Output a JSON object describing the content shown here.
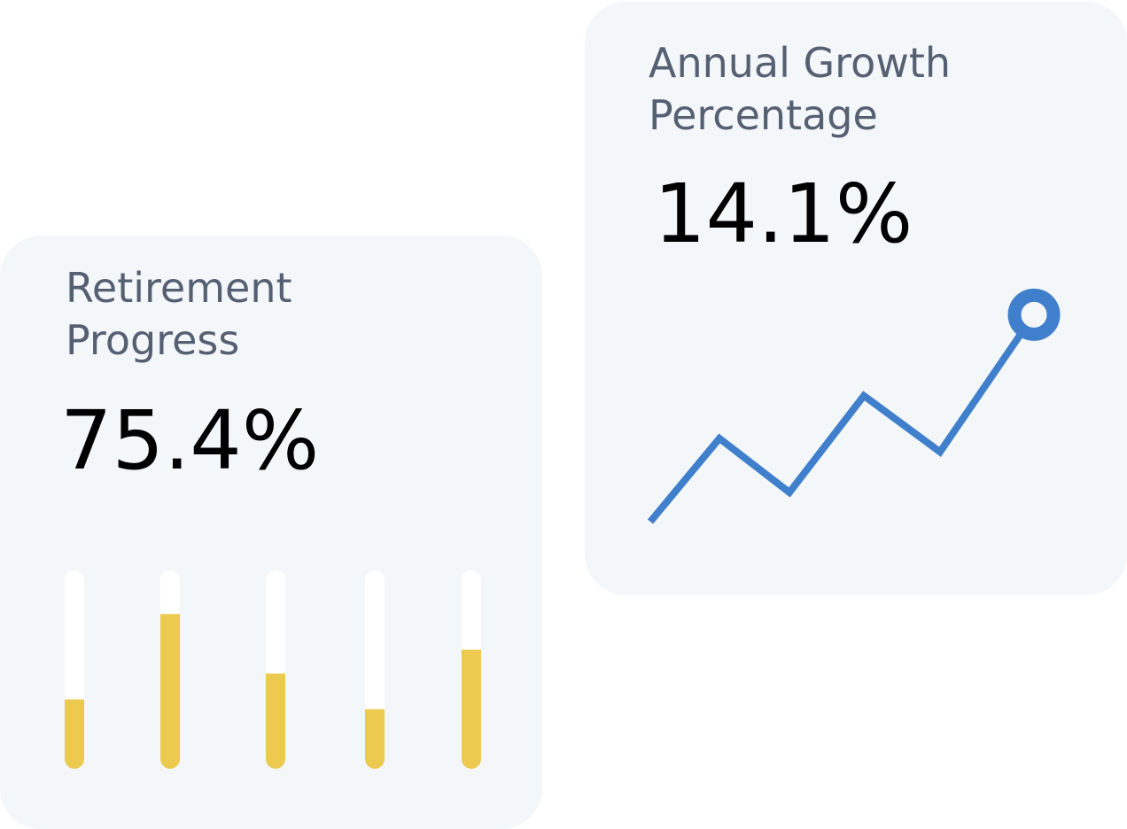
{
  "cards": {
    "retirement": {
      "title_line1": "Retirement",
      "title_line2": "Progress",
      "value": "75.4%"
    },
    "growth": {
      "title_line1": "Annual Growth",
      "title_line2": "Percentage",
      "value": "14.1%"
    }
  },
  "colors": {
    "card_background": "#f4f7fa",
    "title": "#566073",
    "bar_fill": "#ecc94f",
    "bar_track": "#ffffff",
    "line": "#3f7fcb"
  },
  "chart_data": [
    {
      "type": "bar",
      "title": "Retirement Progress",
      "categories": [
        "",
        "",
        "",
        "",
        ""
      ],
      "values": [
        0.35,
        0.78,
        0.48,
        0.3,
        0.6
      ],
      "ylim": [
        0,
        1
      ],
      "grid": false,
      "legend": "none"
    },
    {
      "type": "line",
      "title": "Annual Growth Percentage",
      "x": [
        1,
        2,
        3,
        4,
        5,
        6
      ],
      "values": [
        0.0,
        0.37,
        0.13,
        0.56,
        0.31,
        0.92
      ],
      "ylim": [
        0,
        1
      ],
      "marker_on_last_point": true,
      "grid": false,
      "legend": "none"
    }
  ]
}
